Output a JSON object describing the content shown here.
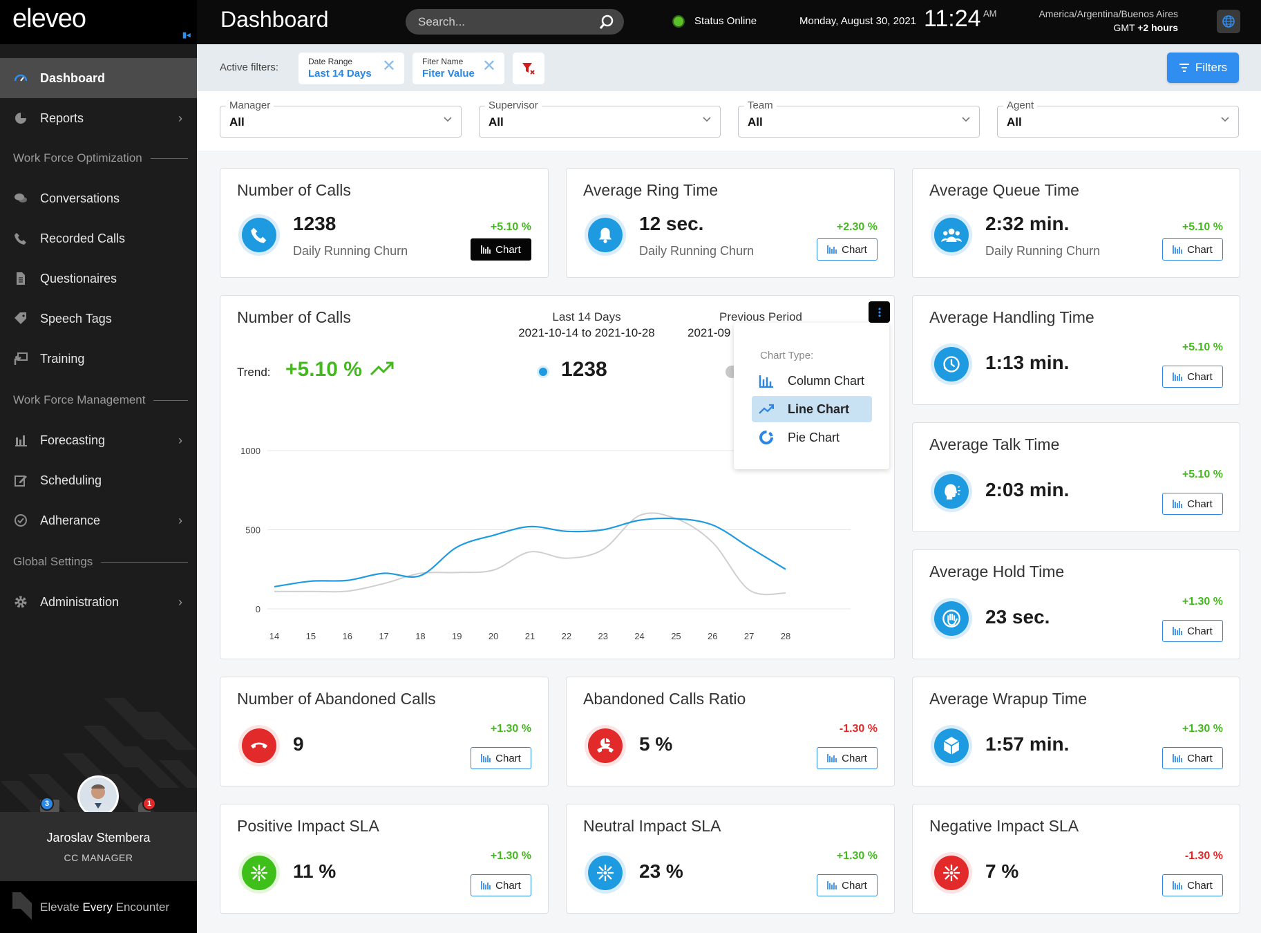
{
  "app": {
    "logo": "eleveo",
    "tagline_prefix": "Elevate ",
    "tagline_bold": "Every",
    "tagline_suffix": " Encounter"
  },
  "sidebar": {
    "items": [
      {
        "label": "Dashboard",
        "icon": "gauge-icon"
      },
      {
        "label": "Reports",
        "icon": "pie-chart-icon"
      },
      {
        "label": "Conversations",
        "icon": "chat-bubbles-icon"
      },
      {
        "label": "Recorded Calls",
        "icon": "phone-icon"
      },
      {
        "label": "Questionaires",
        "icon": "document-icon"
      },
      {
        "label": "Speech Tags",
        "icon": "tag-icon"
      },
      {
        "label": "Training",
        "icon": "presentation-icon"
      },
      {
        "label": "Forecasting",
        "icon": "bar-chart-icon"
      },
      {
        "label": "Scheduling",
        "icon": "edit-icon"
      },
      {
        "label": "Adherance",
        "icon": "check-circle-icon"
      },
      {
        "label": "Administration",
        "icon": "gear-icon"
      }
    ],
    "sections": [
      "Work Force Optimization",
      "Work Force Management",
      "Global Settings"
    ]
  },
  "user": {
    "name": "Jaroslav Stembera",
    "role": "CC MANAGER",
    "messages_badge": "3",
    "notifications_badge": "1"
  },
  "header": {
    "title": "Dashboard",
    "search_placeholder": "Search...",
    "status": "Status Online",
    "date": "Monday, August 30, 2021",
    "time": "11:24",
    "ampm": "AM",
    "timezone": "America/Argentina/Buenos Aires",
    "gmt_prefix": "GMT ",
    "gmt_offset": "+2 hours"
  },
  "filters": {
    "label": "Active filters:",
    "chips": [
      {
        "label": "Date Range",
        "value": "Last 14 Days"
      },
      {
        "label": "Fiter Name",
        "value": "Fiter Value"
      }
    ],
    "button": "Filters"
  },
  "selects": [
    {
      "label": "Manager",
      "value": "All"
    },
    {
      "label": "Supervisor",
      "value": "All"
    },
    {
      "label": "Team",
      "value": "All"
    },
    {
      "label": "Agent",
      "value": "All"
    }
  ],
  "chart_label": "Chart",
  "cards": {
    "calls": {
      "title": "Number of Calls",
      "value": "1238",
      "sub": "Daily Running Churn",
      "pct": "+5.10 %"
    },
    "ring": {
      "title": "Average Ring Time",
      "value": "12 sec.",
      "sub": "Daily Running Churn",
      "pct": "+2.30 %"
    },
    "queue": {
      "title": "Average Queue Time",
      "value": "2:32 min.",
      "sub": "Daily Running Churn",
      "pct": "+5.10 %"
    },
    "handling": {
      "title": "Average Handling Time",
      "value": "1:13 min.",
      "pct": "+5.10 %"
    },
    "talk": {
      "title": "Average Talk Time",
      "value": "2:03 min.",
      "pct": "+5.10 %"
    },
    "hold": {
      "title": "Average Hold Time",
      "value": "23 sec.",
      "pct": "+1.30 %"
    },
    "abandoned": {
      "title": "Number of Abandoned Calls",
      "value": "9",
      "pct": "+1.30 %"
    },
    "ratio": {
      "title": "Abandoned Calls Ratio",
      "value": "5 %",
      "pct": "-1.30 %"
    },
    "wrapup": {
      "title": "Average Wrapup Time",
      "value": "1:57 min.",
      "pct": "+1.30 %"
    },
    "positive": {
      "title": "Positive Impact SLA",
      "value": "11 %",
      "pct": "+1.30 %"
    },
    "neutral": {
      "title": "Neutral Impact SLA",
      "value": "23 %",
      "pct": "+1.30 %"
    },
    "negative": {
      "title": "Negative Impact SLA",
      "value": "7 %",
      "pct": "-1.30 %"
    }
  },
  "big_chart": {
    "title": "Number of Calls",
    "period1_label": "Last 14 Days",
    "period1_range": "2021-10-14 to 2021-10-28",
    "period2_label": "Previous Period",
    "period2_range": "2021-09",
    "trend_label": "Trend:",
    "trend_value": "+5.10 %",
    "current_total": "1238",
    "menu": {
      "title": "Chart Type:",
      "options": [
        "Column Chart",
        "Line Chart",
        "Pie Chart"
      ],
      "selected": "Line Chart"
    }
  },
  "chart_data": {
    "type": "line",
    "x": [
      14,
      15,
      16,
      17,
      18,
      19,
      20,
      21,
      22,
      23,
      24,
      25,
      26,
      27,
      28
    ],
    "ylim": [
      0,
      1000
    ],
    "yticks": [
      0,
      500,
      1000
    ],
    "series": [
      {
        "name": "Last 14 Days",
        "color": "#1e9be0",
        "values": [
          140,
          175,
          180,
          225,
          210,
          390,
          465,
          520,
          490,
          500,
          560,
          570,
          530,
          390,
          250
        ]
      },
      {
        "name": "Previous Period",
        "color": "#cfcfcf",
        "values": [
          110,
          110,
          112,
          160,
          225,
          230,
          245,
          360,
          320,
          375,
          590,
          570,
          420,
          120,
          100
        ]
      }
    ]
  }
}
